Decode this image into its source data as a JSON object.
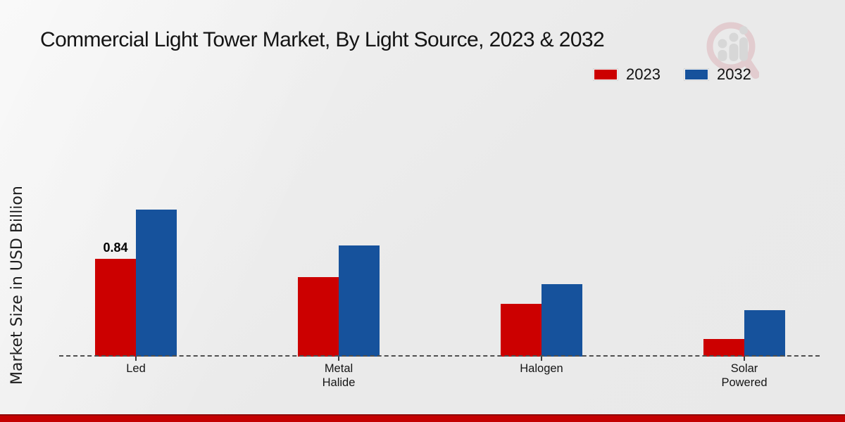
{
  "title": "Commercial Light Tower Market, By Light Source, 2023 & 2032",
  "legend": {
    "items": [
      {
        "label": "2023",
        "color": "#cc0000"
      },
      {
        "label": "2032",
        "color": "#16529c"
      }
    ]
  },
  "watermark_icon": "magnifier-bar-chart-logo",
  "footer": {
    "color": "#c40001"
  },
  "chart_data": {
    "type": "bar",
    "title": "Commercial Light Tower Market, By Light Source, 2023 & 2032",
    "xlabel": "",
    "ylabel": "Market Size in USD Billion",
    "categories": [
      "Led",
      "Metal Halide",
      "Halogen",
      "Solar Powered"
    ],
    "series": [
      {
        "name": "2023",
        "color": "#cc0000",
        "values": [
          0.84,
          0.68,
          0.45,
          0.14
        ]
      },
      {
        "name": "2032",
        "color": "#16529c",
        "values": [
          1.27,
          0.96,
          0.62,
          0.39
        ]
      }
    ],
    "annotations": [
      {
        "series": "2023",
        "category": "Led",
        "text": "0.84"
      }
    ],
    "ylim": [
      0,
      1.4
    ],
    "grid": false,
    "axis_style": "dashed-baseline",
    "legend_position": "top-right"
  }
}
